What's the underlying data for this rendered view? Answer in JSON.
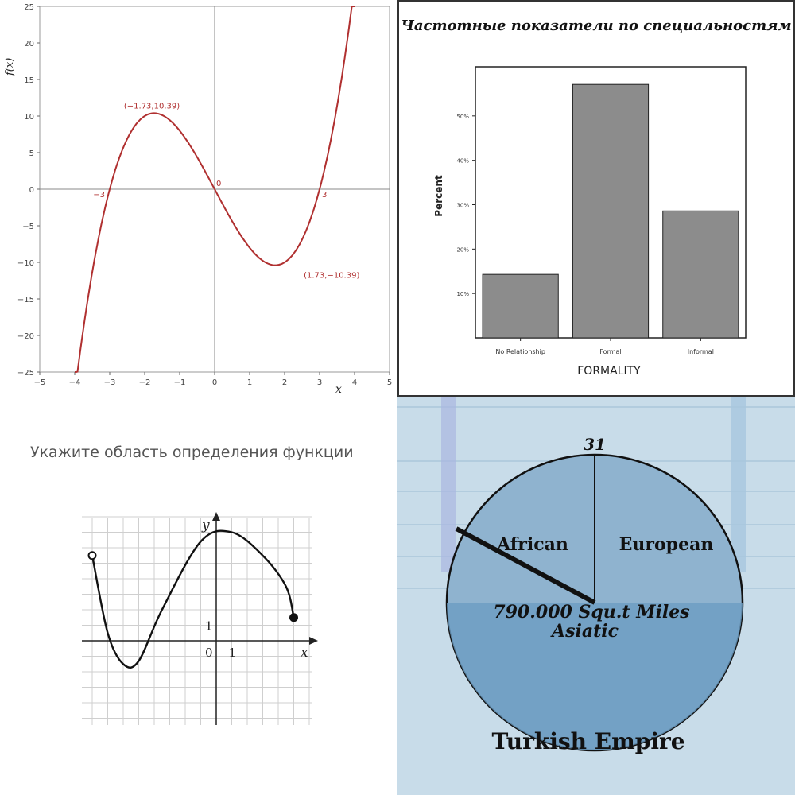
{
  "chart_data": [
    {
      "type": "line",
      "function": "f(x) = x^3 - 9x",
      "xlabel": "x",
      "ylabel": "f(x)",
      "xlim": [
        -5,
        5
      ],
      "ylim": [
        -25,
        25
      ],
      "x_ticks": [
        -5,
        -4,
        -3,
        -2,
        -1,
        0,
        1,
        2,
        3,
        4,
        5
      ],
      "x_tick_labels": [
        "−5",
        "−4",
        "−3",
        "−2",
        "−1",
        "0",
        "1",
        "2",
        "3",
        "4",
        "5"
      ],
      "y_ticks": [
        25,
        20,
        15,
        10,
        5,
        0,
        -5,
        -10,
        -15,
        -20,
        -25
      ],
      "y_tick_labels": [
        "25",
        "20",
        "15",
        "10",
        "5",
        "0",
        "−5",
        "−10",
        "−15",
        "−20",
        "−25"
      ],
      "x_range_plotted": [
        -4,
        4
      ],
      "annotations": [
        {
          "x": -1.73,
          "y": 10.39,
          "text": "(−1.73,10.39)"
        },
        {
          "x": 1.73,
          "y": -10.39,
          "text": "(1.73,−10.39)"
        },
        {
          "x": -3,
          "y": 0,
          "text": "−3"
        },
        {
          "x": 0,
          "y": 0,
          "text": "0"
        },
        {
          "x": 3,
          "y": 0,
          "text": "3"
        }
      ],
      "line_color": "#b03030",
      "grid": false
    },
    {
      "type": "bar",
      "title": "Частотные показатели по специальностям",
      "xlabel": "FORMALITY",
      "ylabel": "Percent",
      "categories": [
        "No Relationship",
        "Formal",
        "Informal"
      ],
      "values": [
        14.3,
        57.1,
        28.6
      ],
      "ylim": [
        0,
        60
      ],
      "y_ticks": [
        10,
        20,
        30,
        40,
        50
      ],
      "y_tick_labels": [
        "10%",
        "20%",
        "30%",
        "40%",
        "50%"
      ],
      "bar_color": "#8c8c8c"
    },
    {
      "type": "line",
      "title": "Укажите область определения функции",
      "xlabel": "x",
      "ylabel": "y",
      "tick_labels": {
        "origin": "0",
        "x_unit": "1",
        "y_unit": "1"
      },
      "xlim": [
        -9,
        7
      ],
      "ylim": [
        -6,
        9
      ],
      "points": [
        {
          "x": -8,
          "y": 5.5
        },
        {
          "x": -7,
          "y": 0.5
        },
        {
          "x": -6,
          "y": -1.5
        },
        {
          "x": -5,
          "y": -1.3
        },
        {
          "x": -3.5,
          "y": 2.0
        },
        {
          "x": -1,
          "y": 6.4
        },
        {
          "x": 1,
          "y": 7.0
        },
        {
          "x": 3,
          "y": 5.5
        },
        {
          "x": 4.5,
          "y": 3.5
        },
        {
          "x": 5,
          "y": 1.5
        }
      ],
      "endpoints": [
        {
          "x": -8,
          "y": 5.5,
          "style": "open"
        },
        {
          "x": 5,
          "y": 1.5,
          "style": "filled"
        }
      ],
      "grid": true
    },
    {
      "type": "pie",
      "labels_text": {
        "top_number": "31",
        "left": "African",
        "right": "European",
        "bottom_line1": "790.000 Squ.t Miles",
        "bottom_line2": "Asiatic",
        "caption": "Turkish Empire"
      },
      "slices": [
        {
          "name": "African",
          "value": 25
        },
        {
          "name": "European",
          "value": 25
        },
        {
          "name": "Asiatic",
          "value": 50
        }
      ],
      "colors": {
        "upper": "#8fb3cf",
        "lower": "#6c9cc2",
        "background": "#c8dce9"
      }
    }
  ]
}
